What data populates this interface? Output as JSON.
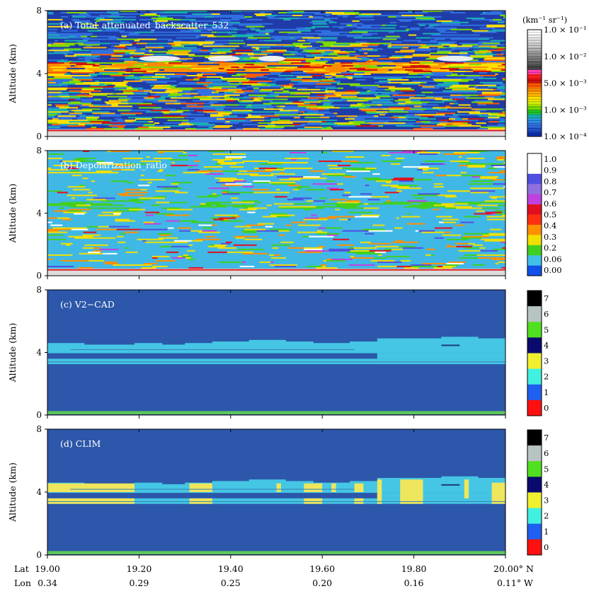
{
  "chart_data": [
    {
      "type": "heatmap",
      "panel_label": "(a)  Total_attenuated_backscatter_532",
      "ylabel": "Altitude (km)",
      "ylim": [
        0,
        8
      ],
      "yticks": [
        "0",
        "4",
        "8"
      ],
      "colorbar": {
        "unit": "(km⁻¹ sr⁻¹)",
        "labels": [
          "1.0 × 10⁻¹",
          "1.0 × 10⁻²",
          "5.0 × 10⁻³",
          "1.0 × 10⁻³",
          "1.0 × 10⁻⁴"
        ],
        "colors": [
          "#ffffff",
          "#eeeeee",
          "#dddddd",
          "#c8c8c8",
          "#b0b0b0",
          "#959595",
          "#7a7a7a",
          "#5e5e5e",
          "#444444",
          "#ff3fb0",
          "#ff2020",
          "#d01010",
          "#ff5a00",
          "#ff8a00",
          "#ffb000",
          "#ffe000",
          "#d8f000",
          "#7adc00",
          "#20c820",
          "#18b0b0",
          "#2a90e8",
          "#3070e0",
          "#2050c8",
          "#1030b0"
        ]
      }
    },
    {
      "type": "heatmap",
      "panel_label": "(b)  Depolarization_ratio",
      "ylabel": "Altitude (km)",
      "ylim": [
        0,
        8
      ],
      "yticks": [
        "0",
        "4",
        "8"
      ],
      "colorbar": {
        "labels": [
          "1.0",
          "0.9",
          "0.8",
          "0.7",
          "0.6",
          "0.5",
          "0.4",
          "0.3",
          "0.2",
          "0.06",
          "0.00"
        ],
        "colors": [
          "#ffffff",
          "#ffffff",
          "#5050e0",
          "#9070e0",
          "#c040e0",
          "#e01020",
          "#ff3010",
          "#ff9000",
          "#f0e000",
          "#40d020",
          "#40c0e8",
          "#1050e8"
        ]
      }
    },
    {
      "type": "heatmap",
      "panel_label": "(c)  V2−CAD",
      "ylabel": "Altitude (km)",
      "ylim": [
        0,
        8
      ],
      "yticks": [
        "0",
        "4",
        "8"
      ],
      "colorbar": {
        "labels": [
          "7",
          "6",
          "5",
          "4",
          "3",
          "2",
          "1",
          "0"
        ],
        "colors": [
          "#000000",
          "#b8c4c4",
          "#50e020",
          "#0a0a6e",
          "#f0f030",
          "#40f0e0",
          "#2060f0",
          "#ff1010"
        ]
      }
    },
    {
      "type": "heatmap",
      "panel_label": "(d)  CLIM",
      "ylabel": "Altitude (km)",
      "ylim": [
        0,
        8
      ],
      "yticks": [
        "0",
        "4",
        "8"
      ],
      "colorbar": {
        "labels": [
          "7",
          "6",
          "5",
          "4",
          "3",
          "2",
          "1",
          "0"
        ],
        "colors": [
          "#000000",
          "#b8c4c4",
          "#50e020",
          "#0a0a6e",
          "#f0f030",
          "#40f0e0",
          "#2060f0",
          "#ff1010"
        ]
      }
    }
  ],
  "x_axis": {
    "lat_prefix": "Lat",
    "lon_prefix": "Lon",
    "lat_range": [
      19.0,
      20.0
    ],
    "lat_ticks": [
      "19.00",
      "19.20",
      "19.40",
      "19.60",
      "19.80",
      "20.00° N"
    ],
    "lon_ticks": [
      "0.34",
      "0.29",
      "0.25",
      "0.20",
      "0.16",
      "0.11° W"
    ]
  },
  "colors": {
    "clear_air": "#2c57aa",
    "cloud_layer": "#44c6e4",
    "surface": "#5ec85a",
    "clim_yellow": "#eee65c"
  }
}
